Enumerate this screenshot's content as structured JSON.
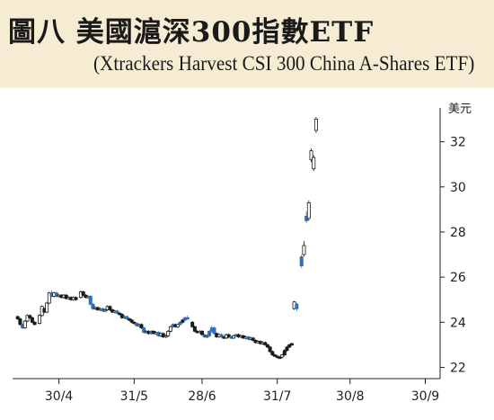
{
  "chart_data": {
    "type": "candlestick",
    "title": "圖八  美國滬深300指數ETF",
    "subtitle": "(Xtrackers Harvest CSI 300 China A-Shares ETF)",
    "unit": "美元",
    "ylim": [
      21.5,
      33.5
    ],
    "y_ticks": [
      22,
      24,
      26,
      28,
      30,
      32
    ],
    "x_tick_labels": [
      "30/4",
      "31/5",
      "28/6",
      "31/7",
      "30/8",
      "30/9"
    ],
    "x_tick_days": [
      8,
      39,
      67,
      98,
      128,
      159
    ],
    "xlim": [
      -10,
      164
    ],
    "colors": {
      "up": "#ffffff",
      "down": "#1a1a1a",
      "blue": "#2f6fb8",
      "axis": "#222222"
    },
    "series": [
      {
        "day": -9,
        "o": 24.25,
        "c": 24.15,
        "h": 24.3,
        "l": 24.1,
        "color": "down"
      },
      {
        "day": -8,
        "o": 24.15,
        "c": 23.9,
        "h": 24.2,
        "l": 23.85,
        "color": "down"
      },
      {
        "day": -7,
        "o": 23.9,
        "c": 23.75,
        "h": 23.95,
        "l": 23.7,
        "color": "blue"
      },
      {
        "day": -6,
        "o": 23.75,
        "c": 24.05,
        "h": 24.1,
        "l": 23.7,
        "color": "up"
      },
      {
        "day": -5,
        "o": 24.05,
        "c": 24.3,
        "h": 24.35,
        "l": 24.0,
        "color": "up"
      },
      {
        "day": -4,
        "o": 24.3,
        "c": 24.2,
        "h": 24.35,
        "l": 24.15,
        "color": "down"
      },
      {
        "day": -3,
        "o": 24.2,
        "c": 24.0,
        "h": 24.25,
        "l": 23.95,
        "color": "down"
      },
      {
        "day": -2,
        "o": 24.0,
        "c": 23.9,
        "h": 24.05,
        "l": 23.85,
        "color": "down"
      },
      {
        "day": 0,
        "o": 23.95,
        "c": 24.3,
        "h": 24.35,
        "l": 23.9,
        "color": "up"
      },
      {
        "day": 1,
        "o": 24.3,
        "c": 24.7,
        "h": 24.75,
        "l": 24.25,
        "color": "up"
      },
      {
        "day": 2,
        "o": 24.6,
        "c": 24.45,
        "h": 24.65,
        "l": 24.4,
        "color": "down"
      },
      {
        "day": 3,
        "o": 24.45,
        "c": 24.85,
        "h": 24.9,
        "l": 24.4,
        "color": "up"
      },
      {
        "day": 4,
        "o": 24.85,
        "c": 25.3,
        "h": 25.35,
        "l": 24.8,
        "color": "up"
      },
      {
        "day": 5,
        "o": 25.3,
        "c": 25.15,
        "h": 25.4,
        "l": 25.1,
        "color": "blue"
      },
      {
        "day": 6,
        "o": 25.15,
        "c": 25.3,
        "h": 25.35,
        "l": 25.1,
        "color": "up"
      },
      {
        "day": 7,
        "o": 25.3,
        "c": 25.15,
        "h": 25.35,
        "l": 25.1,
        "color": "blue"
      },
      {
        "day": 8,
        "o": 25.15,
        "c": 25.2,
        "h": 25.25,
        "l": 25.1,
        "color": "up"
      },
      {
        "day": 9,
        "o": 25.2,
        "c": 25.1,
        "h": 25.25,
        "l": 25.05,
        "color": "down"
      },
      {
        "day": 10,
        "o": 25.1,
        "c": 25.2,
        "h": 25.25,
        "l": 25.05,
        "color": "up"
      },
      {
        "day": 11,
        "o": 25.2,
        "c": 25.05,
        "h": 25.25,
        "l": 25.0,
        "color": "down"
      },
      {
        "day": 12,
        "o": 25.05,
        "c": 25.1,
        "h": 25.15,
        "l": 25.0,
        "color": "up"
      },
      {
        "day": 13,
        "o": 25.1,
        "c": 25.0,
        "h": 25.15,
        "l": 24.95,
        "color": "down"
      },
      {
        "day": 14,
        "o": 25.0,
        "c": 25.1,
        "h": 25.15,
        "l": 24.95,
        "color": "up"
      },
      {
        "day": 15,
        "o": 25.1,
        "c": 25.0,
        "h": 25.15,
        "l": 24.95,
        "color": "down"
      },
      {
        "day": 17,
        "o": 25.1,
        "c": 25.35,
        "h": 25.4,
        "l": 25.05,
        "color": "up"
      },
      {
        "day": 18,
        "o": 25.35,
        "c": 25.2,
        "h": 25.4,
        "l": 25.15,
        "color": "down"
      },
      {
        "day": 19,
        "o": 25.2,
        "c": 25.1,
        "h": 25.25,
        "l": 25.05,
        "color": "down"
      },
      {
        "day": 20,
        "o": 25.1,
        "c": 25.15,
        "h": 25.2,
        "l": 25.05,
        "color": "up"
      },
      {
        "day": 21,
        "o": 25.15,
        "c": 24.8,
        "h": 25.2,
        "l": 24.75,
        "color": "blue"
      },
      {
        "day": 22,
        "o": 24.8,
        "c": 24.6,
        "h": 24.85,
        "l": 24.55,
        "color": "blue"
      },
      {
        "day": 23,
        "o": 24.6,
        "c": 24.65,
        "h": 24.7,
        "l": 24.55,
        "color": "up"
      },
      {
        "day": 24,
        "o": 24.65,
        "c": 24.55,
        "h": 24.7,
        "l": 24.5,
        "color": "down"
      },
      {
        "day": 25,
        "o": 24.55,
        "c": 24.6,
        "h": 24.65,
        "l": 24.5,
        "color": "up"
      },
      {
        "day": 26,
        "o": 24.6,
        "c": 24.5,
        "h": 24.65,
        "l": 24.45,
        "color": "blue"
      },
      {
        "day": 27,
        "o": 24.5,
        "c": 24.55,
        "h": 24.6,
        "l": 24.45,
        "color": "up"
      },
      {
        "day": 28,
        "o": 24.55,
        "c": 24.7,
        "h": 24.75,
        "l": 24.5,
        "color": "up"
      },
      {
        "day": 29,
        "o": 24.7,
        "c": 24.55,
        "h": 24.75,
        "l": 24.5,
        "color": "down"
      },
      {
        "day": 30,
        "o": 24.55,
        "c": 24.45,
        "h": 24.6,
        "l": 24.4,
        "color": "down"
      },
      {
        "day": 31,
        "o": 24.45,
        "c": 24.5,
        "h": 24.55,
        "l": 24.4,
        "color": "up"
      },
      {
        "day": 32,
        "o": 24.5,
        "c": 24.4,
        "h": 24.55,
        "l": 24.35,
        "color": "blue"
      },
      {
        "day": 33,
        "o": 24.4,
        "c": 24.35,
        "h": 24.45,
        "l": 24.3,
        "color": "down"
      },
      {
        "day": 34,
        "o": 24.35,
        "c": 24.2,
        "h": 24.4,
        "l": 24.15,
        "color": "down"
      },
      {
        "day": 35,
        "o": 24.2,
        "c": 24.25,
        "h": 24.3,
        "l": 24.15,
        "color": "up"
      },
      {
        "day": 36,
        "o": 24.25,
        "c": 24.15,
        "h": 24.3,
        "l": 24.1,
        "color": "blue"
      },
      {
        "day": 37,
        "o": 24.15,
        "c": 24.1,
        "h": 24.2,
        "l": 24.05,
        "color": "down"
      },
      {
        "day": 38,
        "o": 24.1,
        "c": 24.0,
        "h": 24.15,
        "l": 23.95,
        "color": "down"
      },
      {
        "day": 39,
        "o": 24.0,
        "c": 23.95,
        "h": 24.05,
        "l": 23.9,
        "color": "down"
      },
      {
        "day": 40,
        "o": 23.95,
        "c": 23.85,
        "h": 24.0,
        "l": 23.8,
        "color": "blue"
      },
      {
        "day": 41,
        "o": 23.85,
        "c": 23.9,
        "h": 23.95,
        "l": 23.8,
        "color": "up"
      },
      {
        "day": 42,
        "o": 23.9,
        "c": 23.75,
        "h": 23.95,
        "l": 23.7,
        "color": "down"
      },
      {
        "day": 43,
        "o": 23.75,
        "c": 23.55,
        "h": 23.8,
        "l": 23.5,
        "color": "blue"
      },
      {
        "day": 44,
        "o": 23.55,
        "c": 23.6,
        "h": 23.65,
        "l": 23.5,
        "color": "up"
      },
      {
        "day": 45,
        "o": 23.6,
        "c": 23.5,
        "h": 23.65,
        "l": 23.45,
        "color": "down"
      },
      {
        "day": 46,
        "o": 23.5,
        "c": 23.6,
        "h": 23.65,
        "l": 23.45,
        "color": "blue"
      },
      {
        "day": 47,
        "o": 23.6,
        "c": 23.5,
        "h": 23.65,
        "l": 23.45,
        "color": "down"
      },
      {
        "day": 48,
        "o": 23.5,
        "c": 23.55,
        "h": 23.6,
        "l": 23.45,
        "color": "up"
      },
      {
        "day": 49,
        "o": 23.55,
        "c": 23.4,
        "h": 23.6,
        "l": 23.35,
        "color": "blue"
      },
      {
        "day": 50,
        "o": 23.4,
        "c": 23.5,
        "h": 23.55,
        "l": 23.35,
        "color": "up"
      },
      {
        "day": 51,
        "o": 23.5,
        "c": 23.35,
        "h": 23.55,
        "l": 23.3,
        "color": "down"
      },
      {
        "day": 52,
        "o": 23.35,
        "c": 23.4,
        "h": 23.45,
        "l": 23.3,
        "color": "up"
      },
      {
        "day": 53,
        "o": 23.4,
        "c": 23.6,
        "h": 23.65,
        "l": 23.35,
        "color": "up"
      },
      {
        "day": 54,
        "o": 23.6,
        "c": 23.8,
        "h": 23.85,
        "l": 23.55,
        "color": "up"
      },
      {
        "day": 55,
        "o": 23.8,
        "c": 23.9,
        "h": 23.95,
        "l": 23.75,
        "color": "blue"
      },
      {
        "day": 56,
        "o": 23.9,
        "c": 23.8,
        "h": 23.95,
        "l": 23.75,
        "color": "down"
      },
      {
        "day": 57,
        "o": 23.8,
        "c": 23.9,
        "h": 23.95,
        "l": 23.75,
        "color": "up"
      },
      {
        "day": 58,
        "o": 23.9,
        "c": 24.0,
        "h": 24.05,
        "l": 23.85,
        "color": "blue"
      },
      {
        "day": 59,
        "o": 24.0,
        "c": 24.1,
        "h": 24.15,
        "l": 23.95,
        "color": "down"
      },
      {
        "day": 60,
        "o": 24.1,
        "c": 24.2,
        "h": 24.25,
        "l": 24.05,
        "color": "blue"
      },
      {
        "day": 61,
        "o": 24.2,
        "c": 24.15,
        "h": 24.3,
        "l": 24.1,
        "color": "blue"
      },
      {
        "day": 63,
        "o": 24.0,
        "c": 23.8,
        "h": 24.05,
        "l": 23.75,
        "color": "down"
      },
      {
        "day": 64,
        "o": 23.8,
        "c": 23.6,
        "h": 23.85,
        "l": 23.55,
        "color": "down"
      },
      {
        "day": 65,
        "o": 23.6,
        "c": 23.55,
        "h": 23.65,
        "l": 23.5,
        "color": "down"
      },
      {
        "day": 66,
        "o": 23.55,
        "c": 23.6,
        "h": 23.65,
        "l": 23.5,
        "color": "up"
      },
      {
        "day": 67,
        "o": 23.6,
        "c": 23.45,
        "h": 23.65,
        "l": 23.4,
        "color": "down"
      },
      {
        "day": 68,
        "o": 23.45,
        "c": 23.35,
        "h": 23.5,
        "l": 23.3,
        "color": "blue"
      },
      {
        "day": 69,
        "o": 23.35,
        "c": 23.4,
        "h": 23.45,
        "l": 23.3,
        "color": "up"
      },
      {
        "day": 70,
        "o": 23.4,
        "c": 23.6,
        "h": 23.65,
        "l": 23.35,
        "color": "blue"
      },
      {
        "day": 71,
        "o": 23.6,
        "c": 23.75,
        "h": 23.85,
        "l": 23.55,
        "color": "blue"
      },
      {
        "day": 72,
        "o": 23.75,
        "c": 23.5,
        "h": 23.8,
        "l": 23.45,
        "color": "blue"
      },
      {
        "day": 73,
        "o": 23.5,
        "c": 23.35,
        "h": 23.55,
        "l": 23.3,
        "color": "down"
      },
      {
        "day": 74,
        "o": 23.35,
        "c": 23.45,
        "h": 23.5,
        "l": 23.3,
        "color": "up"
      },
      {
        "day": 75,
        "o": 23.45,
        "c": 23.35,
        "h": 23.5,
        "l": 23.3,
        "color": "blue"
      },
      {
        "day": 76,
        "o": 23.35,
        "c": 23.3,
        "h": 23.4,
        "l": 23.25,
        "color": "down"
      },
      {
        "day": 77,
        "o": 23.3,
        "c": 23.45,
        "h": 23.5,
        "l": 23.25,
        "color": "up"
      },
      {
        "day": 78,
        "o": 23.45,
        "c": 23.35,
        "h": 23.5,
        "l": 23.3,
        "color": "down"
      },
      {
        "day": 79,
        "o": 23.35,
        "c": 23.3,
        "h": 23.4,
        "l": 23.25,
        "color": "blue"
      },
      {
        "day": 80,
        "o": 23.3,
        "c": 23.4,
        "h": 23.45,
        "l": 23.25,
        "color": "up"
      },
      {
        "day": 81,
        "o": 23.4,
        "c": 23.45,
        "h": 23.5,
        "l": 23.35,
        "color": "blue"
      },
      {
        "day": 82,
        "o": 23.45,
        "c": 23.35,
        "h": 23.5,
        "l": 23.3,
        "color": "down"
      },
      {
        "day": 83,
        "o": 23.35,
        "c": 23.4,
        "h": 23.45,
        "l": 23.3,
        "color": "up"
      },
      {
        "day": 84,
        "o": 23.4,
        "c": 23.3,
        "h": 23.45,
        "l": 23.25,
        "color": "down"
      },
      {
        "day": 85,
        "o": 23.3,
        "c": 23.35,
        "h": 23.4,
        "l": 23.25,
        "color": "up"
      },
      {
        "day": 86,
        "o": 23.35,
        "c": 23.25,
        "h": 23.4,
        "l": 23.2,
        "color": "blue"
      },
      {
        "day": 87,
        "o": 23.25,
        "c": 23.3,
        "h": 23.35,
        "l": 23.2,
        "color": "up"
      },
      {
        "day": 88,
        "o": 23.3,
        "c": 23.2,
        "h": 23.35,
        "l": 23.15,
        "color": "down"
      },
      {
        "day": 89,
        "o": 23.2,
        "c": 23.1,
        "h": 23.25,
        "l": 23.05,
        "color": "down"
      },
      {
        "day": 90,
        "o": 23.1,
        "c": 23.15,
        "h": 23.2,
        "l": 23.05,
        "color": "up"
      },
      {
        "day": 91,
        "o": 23.15,
        "c": 23.05,
        "h": 23.2,
        "l": 23.0,
        "color": "down"
      },
      {
        "day": 92,
        "o": 23.05,
        "c": 23.1,
        "h": 23.15,
        "l": 23.0,
        "color": "up"
      },
      {
        "day": 93,
        "o": 23.1,
        "c": 23.0,
        "h": 23.15,
        "l": 22.95,
        "color": "down"
      },
      {
        "day": 94,
        "o": 23.0,
        "c": 22.9,
        "h": 23.05,
        "l": 22.85,
        "color": "down"
      },
      {
        "day": 95,
        "o": 22.9,
        "c": 22.7,
        "h": 22.95,
        "l": 22.65,
        "color": "down"
      },
      {
        "day": 96,
        "o": 22.7,
        "c": 22.55,
        "h": 22.75,
        "l": 22.5,
        "color": "down"
      },
      {
        "day": 97,
        "o": 22.55,
        "c": 22.5,
        "h": 22.6,
        "l": 22.45,
        "color": "down"
      },
      {
        "day": 98,
        "o": 22.5,
        "c": 22.45,
        "h": 22.55,
        "l": 22.4,
        "color": "down"
      },
      {
        "day": 99,
        "o": 22.45,
        "c": 22.45,
        "h": 22.5,
        "l": 22.4,
        "color": "down"
      },
      {
        "day": 100,
        "o": 22.45,
        "c": 22.55,
        "h": 22.6,
        "l": 22.4,
        "color": "up"
      },
      {
        "day": 101,
        "o": 22.55,
        "c": 22.75,
        "h": 22.8,
        "l": 22.5,
        "color": "down"
      },
      {
        "day": 102,
        "o": 22.75,
        "c": 22.9,
        "h": 22.95,
        "l": 22.7,
        "color": "down"
      },
      {
        "day": 103,
        "o": 22.9,
        "c": 23.0,
        "h": 23.05,
        "l": 22.85,
        "color": "down"
      },
      {
        "day": 104,
        "o": 23.0,
        "c": 23.05,
        "h": 23.1,
        "l": 22.95,
        "color": "down"
      },
      {
        "day": 105,
        "o": 24.6,
        "c": 24.9,
        "h": 24.95,
        "l": 24.55,
        "color": "up"
      },
      {
        "day": 106,
        "o": 24.8,
        "c": 24.6,
        "h": 24.85,
        "l": 24.5,
        "color": "blue"
      },
      {
        "day": 108,
        "o": 26.5,
        "c": 26.9,
        "h": 27.0,
        "l": 26.4,
        "color": "blue"
      },
      {
        "day": 109,
        "o": 27.0,
        "c": 27.4,
        "h": 27.6,
        "l": 26.9,
        "color": "up"
      },
      {
        "day": 110,
        "o": 28.7,
        "c": 28.5,
        "h": 28.9,
        "l": 28.4,
        "color": "blue"
      },
      {
        "day": 111,
        "o": 28.6,
        "c": 29.3,
        "h": 29.4,
        "l": 28.5,
        "color": "up"
      },
      {
        "day": 112,
        "o": 31.2,
        "c": 31.6,
        "h": 31.7,
        "l": 31.1,
        "color": "up"
      },
      {
        "day": 113,
        "o": 31.3,
        "c": 30.8,
        "h": 31.4,
        "l": 30.7,
        "color": "up"
      },
      {
        "day": 114,
        "o": 32.5,
        "c": 33.0,
        "h": 33.1,
        "l": 32.4,
        "color": "up"
      }
    ]
  }
}
